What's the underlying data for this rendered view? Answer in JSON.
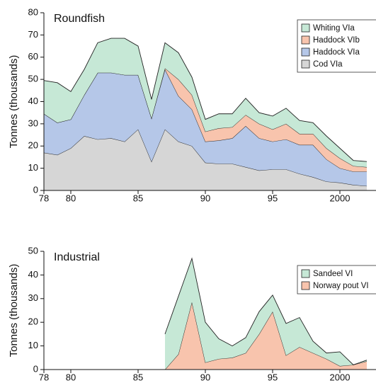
{
  "chart_data": [
    {
      "type": "area",
      "title": "Roundfish",
      "ylabel": "Tonnes (thousands)",
      "x": [
        1978,
        1979,
        1980,
        1981,
        1982,
        1983,
        1984,
        1985,
        1986,
        1987,
        1988,
        1989,
        1990,
        1991,
        1992,
        1993,
        1994,
        1995,
        1996,
        1997,
        1998,
        1999,
        2000,
        2001,
        2002
      ],
      "xlim": [
        1978,
        2002
      ],
      "xticks": [
        {
          "value": 1978,
          "label": "78"
        },
        {
          "value": 1980,
          "label": "80"
        },
        {
          "value": 1985,
          "label": "85"
        },
        {
          "value": 1990,
          "label": "90"
        },
        {
          "value": 1995,
          "label": "95"
        },
        2000
      ],
      "ylim": [
        0,
        80
      ],
      "yticks": [
        0,
        10,
        20,
        30,
        40,
        50,
        60,
        70,
        80
      ],
      "series": [
        {
          "name": "Cod VIa",
          "color": "#d6d6d6",
          "values": [
            17,
            16,
            19,
            24.5,
            23,
            23.5,
            22,
            27.5,
            13,
            27.5,
            22,
            20,
            12.5,
            12,
            12,
            10.5,
            9,
            9.5,
            9.5,
            7.5,
            6,
            4,
            3.5,
            2.5,
            2
          ]
        },
        {
          "name": "Haddock VIa",
          "color": "#b5c7e8",
          "values": [
            17.5,
            14.5,
            13,
            18.5,
            30,
            29.5,
            30,
            24.5,
            19.5,
            27,
            20.5,
            16.5,
            9.5,
            10.5,
            11.5,
            18.5,
            14.5,
            12.5,
            13.5,
            13,
            14.5,
            10,
            6.5,
            6,
            6.5
          ]
        },
        {
          "name": "Haddock VIb",
          "color": "#f8c4ad",
          "values": [
            0,
            0,
            0,
            0,
            0,
            0,
            0,
            0,
            0,
            0.5,
            7.5,
            6.5,
            4.5,
            5.5,
            5,
            5,
            6.5,
            5.5,
            7,
            5,
            5,
            5,
            4.5,
            2.5,
            2
          ]
        },
        {
          "name": "Whiting VIa",
          "color": "#c6e8d6",
          "values": [
            15,
            18,
            12.5,
            11.5,
            13.5,
            15.5,
            16.5,
            13,
            8.5,
            11.5,
            12,
            8,
            5.5,
            6.5,
            6,
            7.5,
            5,
            6,
            7,
            6,
            5,
            5.5,
            4.5,
            2.5,
            2.5
          ]
        }
      ]
    },
    {
      "type": "area",
      "title": "Industrial",
      "ylabel": "Tonnes (thousands)",
      "x": [
        1987,
        1988,
        1989,
        1990,
        1991,
        1992,
        1993,
        1994,
        1995,
        1996,
        1997,
        1998,
        1999,
        2000,
        2001,
        2002
      ],
      "xlim": [
        1978,
        2002
      ],
      "xticks": [
        {
          "value": 1978,
          "label": "78"
        },
        {
          "value": 1980,
          "label": "80"
        },
        {
          "value": 1985,
          "label": "85"
        },
        {
          "value": 1990,
          "label": "90"
        },
        {
          "value": 1995,
          "label": "95"
        },
        2000
      ],
      "ylim": [
        0,
        50
      ],
      "yticks": [
        0,
        10,
        20,
        30,
        40,
        50
      ],
      "series": [
        {
          "name": "Norway pout VI",
          "color": "#f8c4ad",
          "values": [
            0,
            6.5,
            28.5,
            3,
            4.5,
            5,
            7,
            15,
            24.5,
            6,
            9.5,
            7,
            4.5,
            1.5,
            2,
            3.5
          ]
        },
        {
          "name": "Sandeel VI",
          "color": "#c6e8d6",
          "values": [
            15,
            24.5,
            18.5,
            17,
            8.5,
            5,
            6.5,
            9.5,
            7,
            13.5,
            12.5,
            5,
            2.5,
            6,
            0,
            0.5
          ]
        }
      ]
    }
  ]
}
